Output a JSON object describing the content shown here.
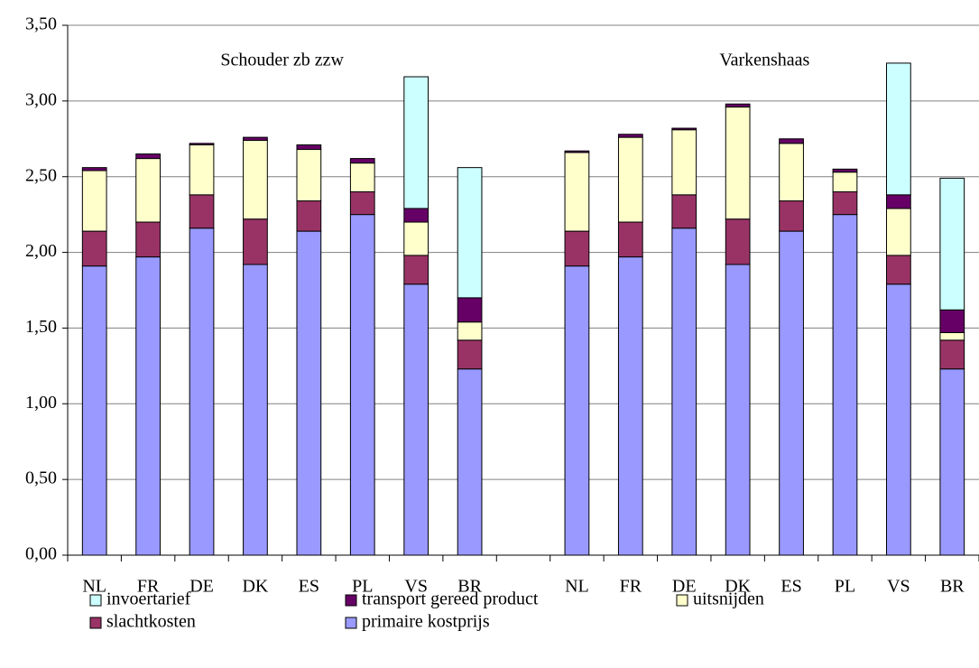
{
  "chart_data": {
    "type": "stacked_bar",
    "annotations": [
      {
        "text": "Schouder zb zzw",
        "group": [
          0,
          7
        ]
      },
      {
        "text": "Varkenshaas",
        "group": [
          9,
          16
        ]
      }
    ],
    "categories": [
      "NL",
      "FR",
      "DE",
      "DK",
      "ES",
      "PL",
      "VS",
      "BR",
      null,
      "NL",
      "FR",
      "DE",
      "DK",
      "ES",
      "PL",
      "VS",
      "BR"
    ],
    "series": [
      {
        "name": "invoertarief",
        "color": "#ccffff",
        "values": [
          0,
          0,
          0,
          0,
          0,
          0,
          0.87,
          0.86,
          null,
          0,
          0,
          0,
          0,
          0,
          0,
          0.87,
          0.87
        ]
      },
      {
        "name": "transport gereed product",
        "color": "#660066",
        "values": [
          0.02,
          0.03,
          0.01,
          0.02,
          0.03,
          0.03,
          0.09,
          0.16,
          null,
          0.01,
          0.02,
          0.01,
          0.02,
          0.03,
          0.02,
          0.09,
          0.15
        ]
      },
      {
        "name": "uitsnijden",
        "color": "#ffffcc",
        "values": [
          0.4,
          0.42,
          0.33,
          0.52,
          0.34,
          0.19,
          0.22,
          0.12,
          null,
          0.52,
          0.56,
          0.43,
          0.74,
          0.38,
          0.13,
          0.31,
          0.05
        ]
      },
      {
        "name": "slachtkosten",
        "color": "#993366",
        "values": [
          0.23,
          0.23,
          0.22,
          0.3,
          0.2,
          0.15,
          0.19,
          0.19,
          null,
          0.23,
          0.23,
          0.22,
          0.3,
          0.2,
          0.15,
          0.19,
          0.19
        ]
      },
      {
        "name": "primaire kostprijs",
        "color": "#9999ff",
        "values": [
          1.91,
          1.97,
          2.16,
          1.92,
          2.14,
          2.25,
          1.79,
          1.23,
          null,
          1.91,
          1.97,
          2.16,
          1.92,
          2.14,
          2.25,
          1.79,
          1.23
        ]
      }
    ],
    "ylim": [
      0,
      3.5
    ],
    "yticks": [
      {
        "value": 0,
        "label": "0,00"
      },
      {
        "value": 0.5,
        "label": "0,50"
      },
      {
        "value": 1,
        "label": "1,00"
      },
      {
        "value": 1.5,
        "label": "1,50"
      },
      {
        "value": 2,
        "label": "2,00"
      },
      {
        "value": 2.5,
        "label": "2,50"
      },
      {
        "value": 3,
        "label": "3,00"
      },
      {
        "value": 3.5,
        "label": "3,50"
      }
    ],
    "grid": true
  }
}
